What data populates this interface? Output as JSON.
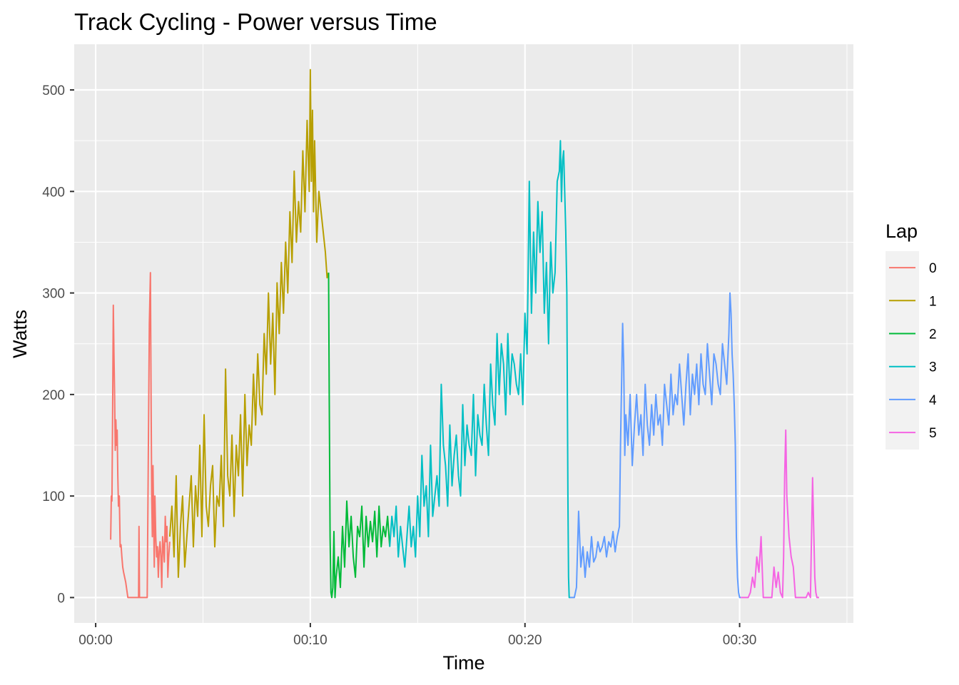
{
  "chart_data": {
    "type": "line",
    "title": "Track Cycling - Power versus Time",
    "xlabel": "Time",
    "ylabel": "Watts",
    "x_unit": "minutes",
    "xlim": [
      -1,
      35.3
    ],
    "ylim": [
      -25,
      545
    ],
    "x_ticks": [
      {
        "value": 0,
        "label": "00:00"
      },
      {
        "value": 10,
        "label": "00:10"
      },
      {
        "value": 20,
        "label": "00:20"
      },
      {
        "value": 30,
        "label": "00:30"
      }
    ],
    "y_ticks": [
      {
        "value": 0,
        "label": "0"
      },
      {
        "value": 100,
        "label": "100"
      },
      {
        "value": 200,
        "label": "200"
      },
      {
        "value": 300,
        "label": "300"
      },
      {
        "value": 400,
        "label": "400"
      },
      {
        "value": 500,
        "label": "500"
      }
    ],
    "grid": true,
    "legend": {
      "title": "Lap",
      "position": "right"
    },
    "series": [
      {
        "name": "0",
        "color": "#F8766D",
        "x": [
          0.7,
          0.73,
          0.76,
          0.79,
          0.82,
          0.85,
          0.88,
          0.91,
          0.94,
          0.97,
          1.0,
          1.03,
          1.06,
          1.1,
          1.14,
          1.18,
          1.22,
          1.26,
          1.3,
          1.35,
          1.4,
          1.5,
          1.6,
          1.75,
          1.9,
          2.0,
          2.02,
          2.04,
          2.08,
          2.2,
          2.3,
          2.4,
          2.5,
          2.55,
          2.58,
          2.61,
          2.64,
          2.67,
          2.7,
          2.73,
          2.76,
          2.8,
          2.84,
          2.88,
          2.92,
          2.96,
          3.0,
          3.04,
          3.08,
          3.12,
          3.16,
          3.2,
          3.24,
          3.28,
          3.32,
          3.36,
          3.4,
          3.45
        ],
        "y": [
          57,
          100,
          95,
          180,
          288,
          240,
          200,
          145,
          175,
          150,
          165,
          120,
          90,
          100,
          50,
          52,
          40,
          30,
          25,
          20,
          15,
          0,
          0,
          0,
          0,
          0,
          70,
          0,
          0,
          0,
          0,
          0,
          270,
          320,
          200,
          100,
          60,
          130,
          80,
          30,
          100,
          60,
          40,
          50,
          20,
          45,
          55,
          40,
          10,
          60,
          50,
          35,
          80,
          55,
          70,
          20,
          40,
          55
        ]
      },
      {
        "name": "1",
        "color": "#B79F00",
        "x": [
          3.45,
          3.55,
          3.65,
          3.75,
          3.85,
          3.95,
          4.05,
          4.15,
          4.25,
          4.35,
          4.45,
          4.55,
          4.65,
          4.75,
          4.85,
          4.95,
          5.05,
          5.15,
          5.25,
          5.35,
          5.45,
          5.55,
          5.65,
          5.75,
          5.85,
          5.95,
          6.05,
          6.15,
          6.25,
          6.35,
          6.45,
          6.55,
          6.65,
          6.75,
          6.85,
          6.95,
          7.05,
          7.15,
          7.25,
          7.35,
          7.45,
          7.55,
          7.65,
          7.75,
          7.85,
          7.95,
          8.05,
          8.15,
          8.25,
          8.35,
          8.45,
          8.55,
          8.65,
          8.75,
          8.85,
          8.95,
          9.05,
          9.15,
          9.25,
          9.35,
          9.45,
          9.55,
          9.65,
          9.75,
          9.85,
          9.95,
          10.0,
          10.05,
          10.1,
          10.15,
          10.2,
          10.3,
          10.4,
          10.5,
          10.6,
          10.7,
          10.78,
          10.85
        ],
        "y": [
          60,
          90,
          40,
          120,
          20,
          70,
          100,
          30,
          60,
          90,
          120,
          50,
          110,
          80,
          150,
          60,
          180,
          90,
          70,
          110,
          130,
          50,
          100,
          90,
          140,
          70,
          225,
          120,
          100,
          160,
          80,
          150,
          120,
          180,
          100,
          200,
          130,
          170,
          150,
          220,
          170,
          240,
          190,
          180,
          260,
          220,
          300,
          230,
          280,
          200,
          310,
          260,
          330,
          280,
          350,
          300,
          380,
          330,
          420,
          350,
          390,
          360,
          440,
          380,
          470,
          400,
          520,
          410,
          480,
          380,
          450,
          350,
          400,
          380,
          360,
          340,
          315,
          320
        ]
      },
      {
        "name": "2",
        "color": "#00BA38",
        "x": [
          10.85,
          10.88,
          10.92,
          10.96,
          11.0,
          11.05,
          11.1,
          11.15,
          11.2,
          11.3,
          11.4,
          11.5,
          11.6,
          11.7,
          11.8,
          11.9,
          12.0,
          12.1,
          12.2,
          12.3,
          12.4,
          12.5,
          12.6,
          12.7,
          12.8,
          12.9,
          13.0,
          13.1,
          13.2,
          13.3,
          13.4,
          13.5,
          13.6,
          13.7
        ],
        "y": [
          320,
          200,
          60,
          5,
          0,
          10,
          65,
          0,
          20,
          40,
          10,
          70,
          30,
          95,
          50,
          80,
          40,
          20,
          70,
          60,
          90,
          30,
          80,
          50,
          75,
          55,
          85,
          40,
          90,
          50,
          70,
          60,
          80,
          50
        ]
      },
      {
        "name": "3",
        "color": "#00BFC4",
        "x": [
          13.7,
          13.8,
          13.9,
          14.0,
          14.1,
          14.2,
          14.3,
          14.4,
          14.5,
          14.6,
          14.7,
          14.8,
          14.9,
          15.0,
          15.1,
          15.2,
          15.3,
          15.4,
          15.5,
          15.6,
          15.7,
          15.8,
          15.9,
          16.0,
          16.1,
          16.2,
          16.3,
          16.4,
          16.5,
          16.6,
          16.7,
          16.8,
          16.9,
          17.0,
          17.1,
          17.2,
          17.3,
          17.4,
          17.5,
          17.6,
          17.7,
          17.8,
          17.9,
          18.0,
          18.1,
          18.2,
          18.3,
          18.4,
          18.5,
          18.6,
          18.7,
          18.8,
          18.9,
          19.0,
          19.1,
          19.2,
          19.3,
          19.4,
          19.5,
          19.6,
          19.7,
          19.8,
          19.9,
          20.0,
          20.1,
          20.2,
          20.3,
          20.4,
          20.5,
          20.6,
          20.7,
          20.8,
          20.9,
          21.0,
          21.1,
          21.2,
          21.3,
          21.4,
          21.5,
          21.6,
          21.65,
          21.7,
          21.75,
          21.8,
          21.85,
          21.9,
          21.95,
          22.0,
          22.03,
          22.06,
          22.1
        ],
        "y": [
          50,
          80,
          60,
          90,
          40,
          70,
          50,
          30,
          60,
          90,
          50,
          70,
          40,
          100,
          60,
          140,
          90,
          110,
          60,
          150,
          80,
          100,
          120,
          90,
          210,
          150,
          130,
          90,
          170,
          110,
          140,
          160,
          120,
          100,
          190,
          130,
          170,
          150,
          140,
          200,
          120,
          180,
          160,
          150,
          210,
          170,
          140,
          230,
          190,
          170,
          260,
          200,
          250,
          230,
          180,
          260,
          200,
          240,
          230,
          210,
          200,
          240,
          190,
          280,
          240,
          410,
          280,
          360,
          300,
          390,
          340,
          380,
          280,
          330,
          250,
          350,
          300,
          320,
          410,
          420,
          450,
          390,
          430,
          440,
          400,
          360,
          300,
          100,
          20,
          0,
          0
        ]
      },
      {
        "name": "4",
        "color": "#619CFF",
        "x": [
          22.1,
          22.2,
          22.3,
          22.4,
          22.5,
          22.6,
          22.7,
          22.8,
          22.9,
          23.0,
          23.1,
          23.2,
          23.3,
          23.4,
          23.5,
          23.6,
          23.7,
          23.8,
          23.9,
          24.0,
          24.1,
          24.2,
          24.3,
          24.4,
          24.45,
          24.5,
          24.55,
          24.6,
          24.65,
          24.7,
          24.8,
          24.9,
          25.0,
          25.1,
          25.2,
          25.3,
          25.4,
          25.5,
          25.6,
          25.7,
          25.8,
          25.9,
          26.0,
          26.1,
          26.2,
          26.3,
          26.4,
          26.5,
          26.6,
          26.7,
          26.8,
          26.9,
          27.0,
          27.1,
          27.2,
          27.3,
          27.4,
          27.5,
          27.6,
          27.7,
          27.8,
          27.9,
          28.0,
          28.1,
          28.2,
          28.3,
          28.4,
          28.5,
          28.6,
          28.7,
          28.8,
          28.9,
          29.0,
          29.1,
          29.2,
          29.3,
          29.4,
          29.5,
          29.55,
          29.6,
          29.65,
          29.7,
          29.75,
          29.8,
          29.85,
          29.9,
          29.95,
          30.0,
          30.05
        ],
        "y": [
          0,
          0,
          0,
          10,
          85,
          30,
          50,
          20,
          45,
          30,
          60,
          35,
          40,
          55,
          45,
          50,
          60,
          40,
          55,
          50,
          65,
          45,
          60,
          70,
          150,
          210,
          270,
          230,
          140,
          180,
          150,
          200,
          130,
          170,
          200,
          160,
          180,
          140,
          210,
          170,
          150,
          190,
          160,
          200,
          170,
          180,
          150,
          210,
          190,
          170,
          220,
          180,
          200,
          190,
          230,
          200,
          170,
          210,
          240,
          180,
          220,
          200,
          230,
          190,
          240,
          210,
          200,
          250,
          220,
          190,
          240,
          230,
          210,
          200,
          250,
          230,
          210,
          260,
          300,
          280,
          240,
          220,
          190,
          150,
          60,
          20,
          5,
          0,
          0
        ]
      },
      {
        "name": "5",
        "color": "#F564E3",
        "x": [
          30.05,
          30.2,
          30.4,
          30.5,
          30.6,
          30.7,
          30.8,
          30.9,
          31.0,
          31.1,
          31.3,
          31.5,
          31.6,
          31.7,
          31.8,
          31.9,
          32.0,
          32.05,
          32.1,
          32.15,
          32.2,
          32.3,
          32.4,
          32.5,
          32.6,
          32.7,
          32.8,
          32.9,
          33.0,
          33.1,
          33.2,
          33.3,
          33.35,
          33.4,
          33.45,
          33.5,
          33.55,
          33.6,
          33.7
        ],
        "y": [
          0,
          0,
          0,
          5,
          20,
          10,
          40,
          25,
          60,
          0,
          0,
          0,
          30,
          10,
          25,
          5,
          0,
          40,
          120,
          165,
          100,
          60,
          40,
          30,
          0,
          0,
          0,
          0,
          0,
          0,
          5,
          0,
          60,
          118,
          70,
          20,
          5,
          0,
          0
        ]
      }
    ]
  }
}
